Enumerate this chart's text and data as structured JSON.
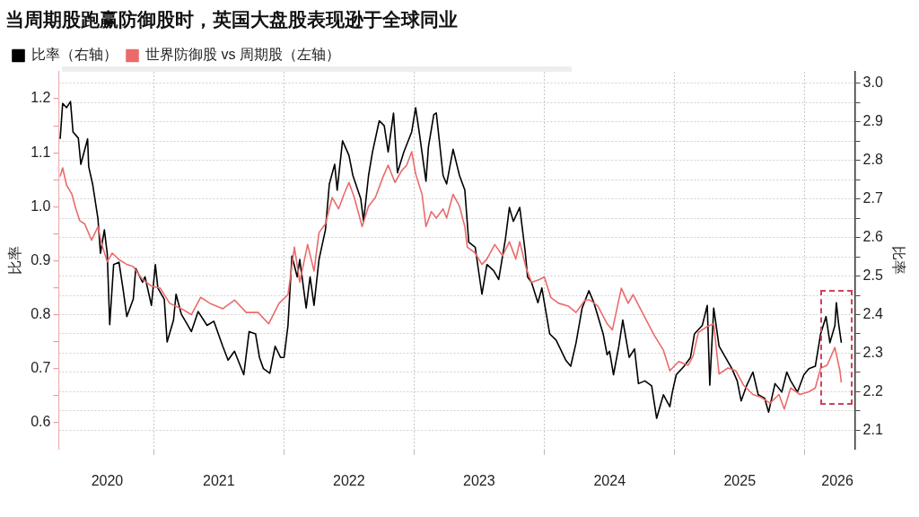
{
  "chart_data": {
    "type": "line",
    "subtitle": "当周期股跑赢防御股时，英国大盘股表现逊于全球同业",
    "ylabel": "比率",
    "y2label": "比率",
    "xlim": [
      "2020-04-09",
      "2026-05-21"
    ],
    "xticks": [
      {
        "value": "2020-08-23",
        "label": "2020"
      },
      {
        "value": "2021-01-01",
        "label": null
      },
      {
        "value": "2021-07-02",
        "label": "2021"
      },
      {
        "value": "2022-01-01",
        "label": null
      },
      {
        "value": "2022-07-02",
        "label": "2022"
      },
      {
        "value": "2023-01-01",
        "label": null
      },
      {
        "value": "2023-07-02",
        "label": "2023"
      },
      {
        "value": "2024-01-01",
        "label": null
      },
      {
        "value": "2024-07-02",
        "label": "2024"
      },
      {
        "value": "2025-01-01",
        "label": null
      },
      {
        "value": "2025-07-02",
        "label": "2025"
      },
      {
        "value": "2026-01-01",
        "label": null
      },
      {
        "value": "2026-04-02",
        "label": "2026"
      }
    ],
    "ylim": [
      0.55,
      1.25
    ],
    "yticks": [
      0.6,
      {
        "value": 0.65,
        "label": null
      },
      0.7,
      {
        "value": 0.75,
        "label": null
      },
      0.8,
      {
        "value": 0.85,
        "label": null
      },
      0.9,
      {
        "value": 0.95,
        "label": null
      },
      {
        "value": 1,
        "label": "1.0"
      },
      {
        "value": 1.05,
        "label": null
      },
      1.1,
      {
        "value": 1.15,
        "label": null
      },
      1.2
    ],
    "y2lim": [
      2.05,
      3.03
    ],
    "y2ticks": [
      2.1,
      {
        "value": 2.15,
        "label": null
      },
      2.2,
      {
        "value": 2.25,
        "label": null
      },
      2.3,
      {
        "value": 2.35,
        "label": null
      },
      2.4,
      {
        "value": 2.45,
        "label": null
      },
      2.5,
      {
        "value": 2.55,
        "label": null
      },
      2.6,
      {
        "value": 2.65,
        "label": null
      },
      2.7,
      {
        "value": 2.75,
        "label": null
      },
      2.8,
      {
        "value": 2.85,
        "label": null
      },
      2.9,
      {
        "value": 2.95,
        "label": null
      },
      {
        "value": 3,
        "label": "3.0"
      }
    ],
    "grid": true,
    "legend": "top left",
    "marker": "none",
    "line_style": "solid",
    "series": [
      {
        "name": "比率（右轴）",
        "color": "#000000",
        "axis": "y2",
        "x": [
          "2020-04-13",
          "2020-04-20",
          "2020-05-01",
          "2020-05-12",
          "2020-05-19",
          "2020-06-03",
          "2020-06-10",
          "2020-06-29",
          "2020-07-02",
          "2020-07-13",
          "2020-07-28",
          "2020-08-04",
          "2020-08-15",
          "2020-08-23",
          "2020-08-30",
          "2020-09-10",
          "2020-09-25",
          "2020-10-06",
          "2020-10-17",
          "2020-11-04",
          "2020-11-11",
          "2020-11-30",
          "2020-12-07",
          "2020-12-25",
          "2021-01-05",
          "2021-01-12",
          "2021-01-30",
          "2021-02-07",
          "2021-02-25",
          "2021-03-04",
          "2021-03-19",
          "2021-04-02",
          "2021-04-16",
          "2021-05-05",
          "2021-05-30",
          "2021-06-18",
          "2021-07-13",
          "2021-07-28",
          "2021-08-15",
          "2021-09-10",
          "2021-09-25",
          "2021-10-13",
          "2021-10-24",
          "2021-11-04",
          "2021-11-22",
          "2021-12-07",
          "2021-12-22",
          "2022-01-01",
          "2022-01-12",
          "2022-01-23",
          "2022-02-07",
          "2022-02-14",
          "2022-03-04",
          "2022-03-15",
          "2022-03-26",
          "2022-04-09",
          "2022-04-27",
          "2022-05-08",
          "2022-05-23",
          "2022-05-30",
          "2022-06-14",
          "2022-07-02",
          "2022-07-13",
          "2022-08-04",
          "2022-08-12",
          "2022-08-26",
          "2022-09-06",
          "2022-09-25",
          "2022-10-09",
          "2022-10-20",
          "2022-11-04",
          "2022-11-15",
          "2022-12-03",
          "2022-12-25",
          "2023-01-05",
          "2023-01-16",
          "2023-02-03",
          "2023-02-10",
          "2023-02-25",
          "2023-03-04",
          "2023-03-23",
          "2023-04-02",
          "2023-04-20",
          "2023-05-08",
          "2023-05-23",
          "2023-06-03",
          "2023-06-21",
          "2023-07-10",
          "2023-07-24",
          "2023-08-12",
          "2023-08-26",
          "2023-09-14",
          "2023-09-25",
          "2023-10-06",
          "2023-10-24",
          "2023-11-08",
          "2023-11-15",
          "2023-11-26",
          "2023-12-14",
          "2023-12-25",
          "2024-01-16",
          "2024-02-03",
          "2024-03-01",
          "2024-03-15",
          "2024-03-30",
          "2024-04-16",
          "2024-05-05",
          "2024-05-19",
          "2024-06-14",
          "2024-06-25",
          "2024-07-02",
          "2024-07-13",
          "2024-07-28",
          "2024-08-08",
          "2024-08-26",
          "2024-09-10",
          "2024-09-21",
          "2024-10-09",
          "2024-10-28",
          "2024-11-11",
          "2024-11-30",
          "2024-12-18",
          "2024-12-25",
          "2025-01-05",
          "2025-01-27",
          "2025-02-14",
          "2025-02-25",
          "2025-03-19",
          "2025-04-02",
          "2025-04-09",
          "2025-04-20",
          "2025-05-05",
          "2025-05-23",
          "2025-06-10",
          "2025-06-25",
          "2025-07-06",
          "2025-07-21",
          "2025-08-08",
          "2025-08-23",
          "2025-09-10",
          "2025-09-21",
          "2025-10-09",
          "2025-10-28",
          "2025-11-11",
          "2025-11-22",
          "2025-12-11",
          "2025-12-29",
          "2026-01-12",
          "2026-01-30",
          "2026-02-14",
          "2026-03-01",
          "2026-03-12",
          "2026-03-26",
          "2026-03-30",
          "2026-04-05",
          "2026-04-13"
        ],
        "values": [
          2.856,
          2.948,
          2.937,
          2.953,
          2.874,
          2.858,
          2.79,
          2.856,
          2.784,
          2.739,
          2.649,
          2.559,
          2.62,
          2.559,
          2.374,
          2.53,
          2.536,
          2.469,
          2.395,
          2.44,
          2.52,
          2.484,
          2.498,
          2.424,
          2.53,
          2.469,
          2.44,
          2.329,
          2.386,
          2.453,
          2.401,
          2.379,
          2.356,
          2.408,
          2.372,
          2.383,
          2.318,
          2.282,
          2.305,
          2.244,
          2.356,
          2.35,
          2.289,
          2.26,
          2.248,
          2.318,
          2.289,
          2.289,
          2.372,
          2.552,
          2.498,
          2.543,
          2.417,
          2.498,
          2.424,
          2.543,
          2.62,
          2.739,
          2.79,
          2.723,
          2.851,
          2.813,
          2.761,
          2.701,
          2.642,
          2.761,
          2.822,
          2.903,
          2.89,
          2.822,
          2.923,
          2.768,
          2.822,
          2.874,
          2.937,
          2.867,
          2.746,
          2.836,
          2.919,
          2.923,
          2.761,
          2.739,
          2.829,
          2.761,
          2.723,
          2.588,
          2.575,
          2.453,
          2.53,
          2.514,
          2.491,
          2.597,
          2.678,
          2.642,
          2.678,
          2.566,
          2.498,
          2.484,
          2.431,
          2.469,
          2.35,
          2.334,
          2.282,
          2.266,
          2.327,
          2.417,
          2.462,
          2.431,
          2.35,
          2.296,
          2.305,
          2.244,
          2.318,
          2.386,
          2.289,
          2.311,
          2.221,
          2.228,
          2.215,
          2.131,
          2.192,
          2.161,
          2.199,
          2.244,
          2.266,
          2.289,
          2.35,
          2.372,
          2.424,
          2.217,
          2.417,
          2.318,
          2.289,
          2.26,
          2.228,
          2.176,
          2.215,
          2.251,
          2.192,
          2.183,
          2.147,
          2.221,
          2.199,
          2.251,
          2.228,
          2.199,
          2.244,
          2.26,
          2.266,
          2.35,
          2.395,
          2.327,
          2.372,
          2.431,
          2.379,
          2.327
        ]
      },
      {
        "name": "世界防御股 vs 周期股（左轴）",
        "color": "#eb6b6b",
        "axis": "y",
        "x": [
          "2020-04-13",
          "2020-04-20",
          "2020-05-01",
          "2020-05-16",
          "2020-05-27",
          "2020-06-07",
          "2020-06-21",
          "2020-07-10",
          "2020-07-28",
          "2020-08-08",
          "2020-08-23",
          "2020-09-06",
          "2020-09-25",
          "2020-10-17",
          "2020-11-04",
          "2020-11-30",
          "2020-12-25",
          "2021-01-19",
          "2021-02-14",
          "2021-03-19",
          "2021-04-16",
          "2021-05-12",
          "2021-06-07",
          "2021-07-13",
          "2021-08-15",
          "2021-09-17",
          "2021-10-20",
          "2021-11-19",
          "2021-12-18",
          "2022-01-12",
          "2022-01-30",
          "2022-02-14",
          "2022-03-08",
          "2022-03-26",
          "2022-04-09",
          "2022-04-27",
          "2022-05-16",
          "2022-06-03",
          "2022-06-18",
          "2022-07-02",
          "2022-07-17",
          "2022-08-08",
          "2022-08-26",
          "2022-09-14",
          "2022-10-06",
          "2022-10-20",
          "2022-11-08",
          "2022-11-26",
          "2022-12-11",
          "2022-12-25",
          "2023-01-05",
          "2023-01-23",
          "2023-02-03",
          "2023-02-18",
          "2023-03-04",
          "2023-03-23",
          "2023-04-02",
          "2023-04-20",
          "2023-05-08",
          "2023-05-23",
          "2023-05-30",
          "2023-06-21",
          "2023-07-10",
          "2023-07-24",
          "2023-08-15",
          "2023-09-06",
          "2023-09-25",
          "2023-10-13",
          "2023-10-24",
          "2023-11-11",
          "2023-11-26",
          "2023-12-18",
          "2024-01-01",
          "2024-01-19",
          "2024-02-10",
          "2024-03-08",
          "2024-03-30",
          "2024-04-24",
          "2024-05-08",
          "2024-05-30",
          "2024-06-25",
          "2024-07-10",
          "2024-08-04",
          "2024-08-23",
          "2024-09-06",
          "2024-10-09",
          "2024-11-04",
          "2024-11-30",
          "2024-12-18",
          "2025-01-12",
          "2025-02-07",
          "2025-02-21",
          "2025-03-08",
          "2025-04-02",
          "2025-04-20",
          "2025-05-05",
          "2025-05-30",
          "2025-06-21",
          "2025-07-13",
          "2025-08-08",
          "2025-08-30",
          "2025-09-25",
          "2025-10-20",
          "2025-11-04",
          "2025-11-22",
          "2025-12-18",
          "2026-01-12",
          "2026-01-30",
          "2026-02-14",
          "2026-03-04",
          "2026-03-26",
          "2026-04-09",
          "2026-04-13"
        ],
        "values": [
          1.056,
          1.072,
          1.04,
          1.023,
          0.996,
          0.974,
          0.968,
          0.938,
          0.963,
          0.93,
          0.898,
          0.914,
          0.902,
          0.893,
          0.889,
          0.865,
          0.853,
          0.849,
          0.821,
          0.811,
          0.8,
          0.832,
          0.821,
          0.811,
          0.827,
          0.804,
          0.804,
          0.783,
          0.821,
          0.837,
          0.925,
          0.86,
          0.93,
          0.881,
          0.952,
          0.968,
          1.017,
          0.996,
          1.023,
          1.045,
          1.017,
          0.963,
          1.001,
          1.017,
          1.056,
          1.077,
          1.045,
          1.066,
          1.077,
          1.102,
          1.061,
          1.023,
          0.963,
          0.991,
          0.979,
          0.996,
          0.979,
          1.023,
          1.001,
          0.963,
          0.925,
          0.914,
          0.893,
          0.903,
          0.93,
          0.909,
          0.935,
          0.903,
          0.935,
          0.886,
          0.86,
          0.865,
          0.87,
          0.832,
          0.821,
          0.816,
          0.804,
          0.827,
          0.827,
          0.816,
          0.783,
          0.772,
          0.849,
          0.821,
          0.837,
          0.795,
          0.762,
          0.734,
          0.696,
          0.713,
          0.706,
          0.723,
          0.767,
          0.778,
          0.783,
          0.69,
          0.701,
          0.696,
          0.669,
          0.652,
          0.647,
          0.636,
          0.652,
          0.625,
          0.664,
          0.652,
          0.657,
          0.664,
          0.701,
          0.706,
          0.739,
          0.696,
          0.674
        ]
      }
    ]
  }
}
